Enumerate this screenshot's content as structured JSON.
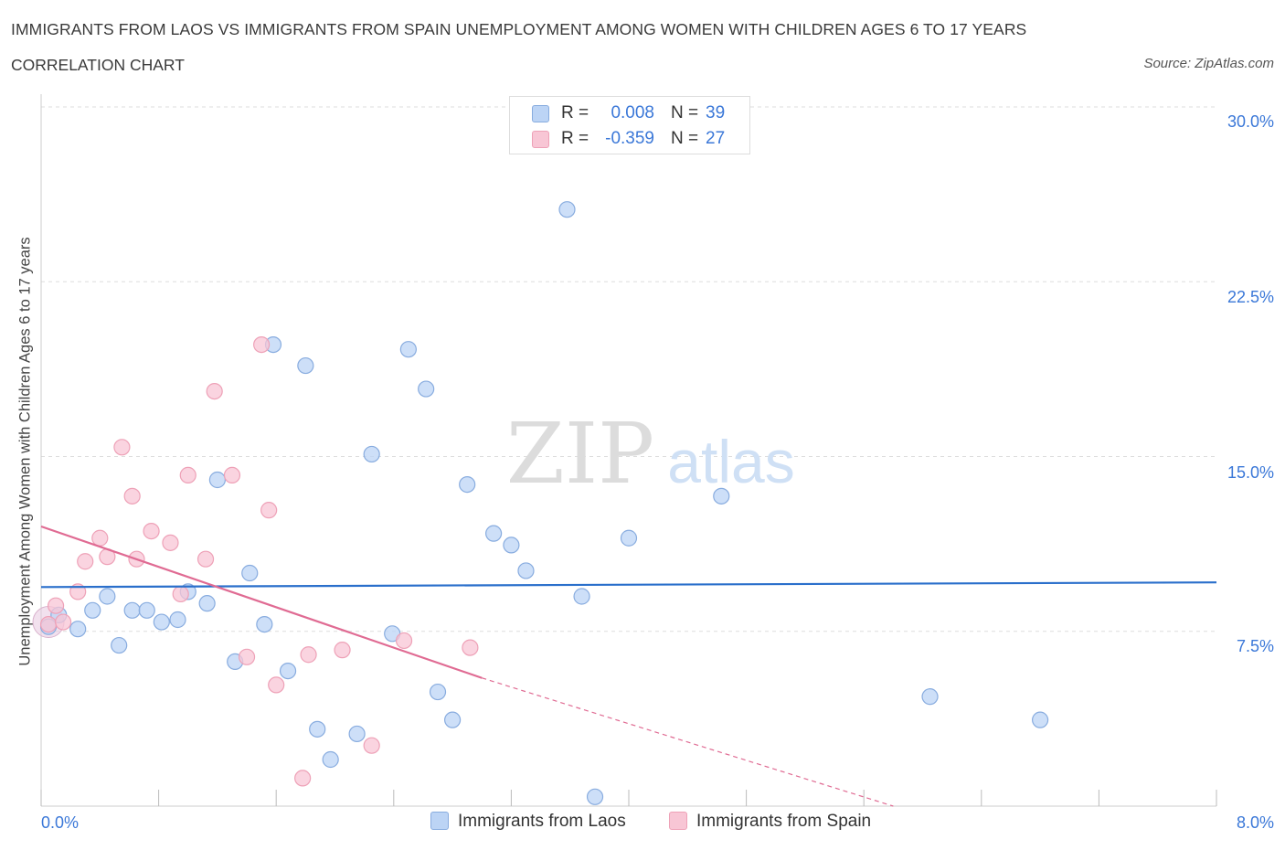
{
  "header": {
    "title": "IMMIGRANTS FROM LAOS VS IMMIGRANTS FROM SPAIN UNEMPLOYMENT AMONG WOMEN WITH CHILDREN AGES 6 TO 17 YEARS",
    "subtitle": "CORRELATION CHART",
    "source": "Source: ZipAtlas.com"
  },
  "watermark": {
    "zip": "ZIP",
    "atlas": "atlas"
  },
  "legend": {
    "r_label": "R =",
    "n_label": "N =",
    "rows": [
      {
        "r": "0.008",
        "n": "39"
      },
      {
        "r": "-0.359",
        "n": "27"
      }
    ]
  },
  "colors": {
    "laos_fill": "#bcd4f5",
    "laos_stroke": "#88acdf",
    "laos_line": "#2a6fcb",
    "spain_fill": "#f8c6d5",
    "spain_stroke": "#eea1b7",
    "spain_line": "#e06b93",
    "tick_text": "#3b78d8",
    "grid": "#dddddd"
  },
  "chart_data": {
    "type": "scatter",
    "title": "IMMIGRANTS FROM LAOS VS IMMIGRANTS FROM SPAIN UNEMPLOYMENT AMONG WOMEN WITH CHILDREN AGES 6 TO 17 YEARS",
    "subtitle": "CORRELATION CHART",
    "xlabel": "",
    "ylabel": "Unemployment Among Women with Children Ages 6 to 17 years",
    "xlim": [
      0,
      8
    ],
    "ylim": [
      0,
      30
    ],
    "x_tick_labels": [
      "0.0%",
      "8.0%"
    ],
    "y_ticks": [
      7.5,
      15,
      22.5,
      30
    ],
    "y_tick_labels": [
      "7.5%",
      "15.0%",
      "22.5%",
      "30.0%"
    ],
    "grid": true,
    "legend_position": "top-center",
    "series": [
      {
        "name": "Immigrants from Laos",
        "r": 0.008,
        "n": 39,
        "trend": {
          "x": [
            0,
            8
          ],
          "y": [
            9.4,
            9.6
          ],
          "dashed_extension": false
        },
        "points": [
          [
            0.05,
            7.7
          ],
          [
            0.12,
            8.2
          ],
          [
            0.25,
            7.6
          ],
          [
            0.35,
            8.4
          ],
          [
            0.45,
            9.0
          ],
          [
            0.53,
            6.9
          ],
          [
            0.62,
            8.4
          ],
          [
            0.72,
            8.4
          ],
          [
            0.82,
            7.9
          ],
          [
            0.93,
            8.0
          ],
          [
            1.0,
            9.2
          ],
          [
            1.13,
            8.7
          ],
          [
            1.2,
            14.0
          ],
          [
            1.32,
            6.2
          ],
          [
            1.42,
            10.0
          ],
          [
            1.52,
            7.8
          ],
          [
            1.58,
            19.8
          ],
          [
            1.68,
            5.8
          ],
          [
            1.8,
            18.9
          ],
          [
            1.88,
            3.3
          ],
          [
            1.97,
            2.0
          ],
          [
            2.15,
            3.1
          ],
          [
            2.25,
            15.1
          ],
          [
            2.39,
            7.4
          ],
          [
            2.5,
            19.6
          ],
          [
            2.62,
            17.9
          ],
          [
            2.7,
            4.9
          ],
          [
            2.8,
            3.7
          ],
          [
            2.9,
            13.8
          ],
          [
            3.08,
            11.7
          ],
          [
            3.2,
            11.2
          ],
          [
            3.3,
            10.1
          ],
          [
            3.58,
            25.6
          ],
          [
            3.68,
            9.0
          ],
          [
            3.77,
            0.4
          ],
          [
            4.0,
            11.5
          ],
          [
            4.63,
            13.3
          ],
          [
            6.05,
            4.7
          ],
          [
            6.8,
            3.7
          ]
        ]
      },
      {
        "name": "Immigrants from Spain",
        "r": -0.359,
        "n": 27,
        "trend": {
          "x": [
            0,
            3.0
          ],
          "y": [
            12.0,
            5.5
          ],
          "dashed_x": [
            3.0,
            5.8
          ],
          "dashed_y": [
            5.5,
            0.0
          ]
        },
        "points": [
          [
            0.05,
            7.8
          ],
          [
            0.15,
            7.9
          ],
          [
            0.25,
            9.2
          ],
          [
            0.3,
            10.5
          ],
          [
            0.4,
            11.5
          ],
          [
            0.45,
            10.7
          ],
          [
            0.55,
            15.4
          ],
          [
            0.62,
            13.3
          ],
          [
            0.65,
            10.6
          ],
          [
            0.75,
            11.8
          ],
          [
            0.88,
            11.3
          ],
          [
            0.95,
            9.1
          ],
          [
            1.0,
            14.2
          ],
          [
            1.12,
            10.6
          ],
          [
            1.18,
            17.8
          ],
          [
            1.3,
            14.2
          ],
          [
            1.4,
            6.4
          ],
          [
            1.5,
            19.8
          ],
          [
            1.55,
            12.7
          ],
          [
            1.6,
            5.2
          ],
          [
            1.78,
            1.2
          ],
          [
            1.82,
            6.5
          ],
          [
            2.05,
            6.7
          ],
          [
            2.25,
            2.6
          ],
          [
            2.47,
            7.1
          ],
          [
            2.92,
            6.8
          ],
          [
            0.1,
            8.6
          ]
        ]
      }
    ]
  }
}
